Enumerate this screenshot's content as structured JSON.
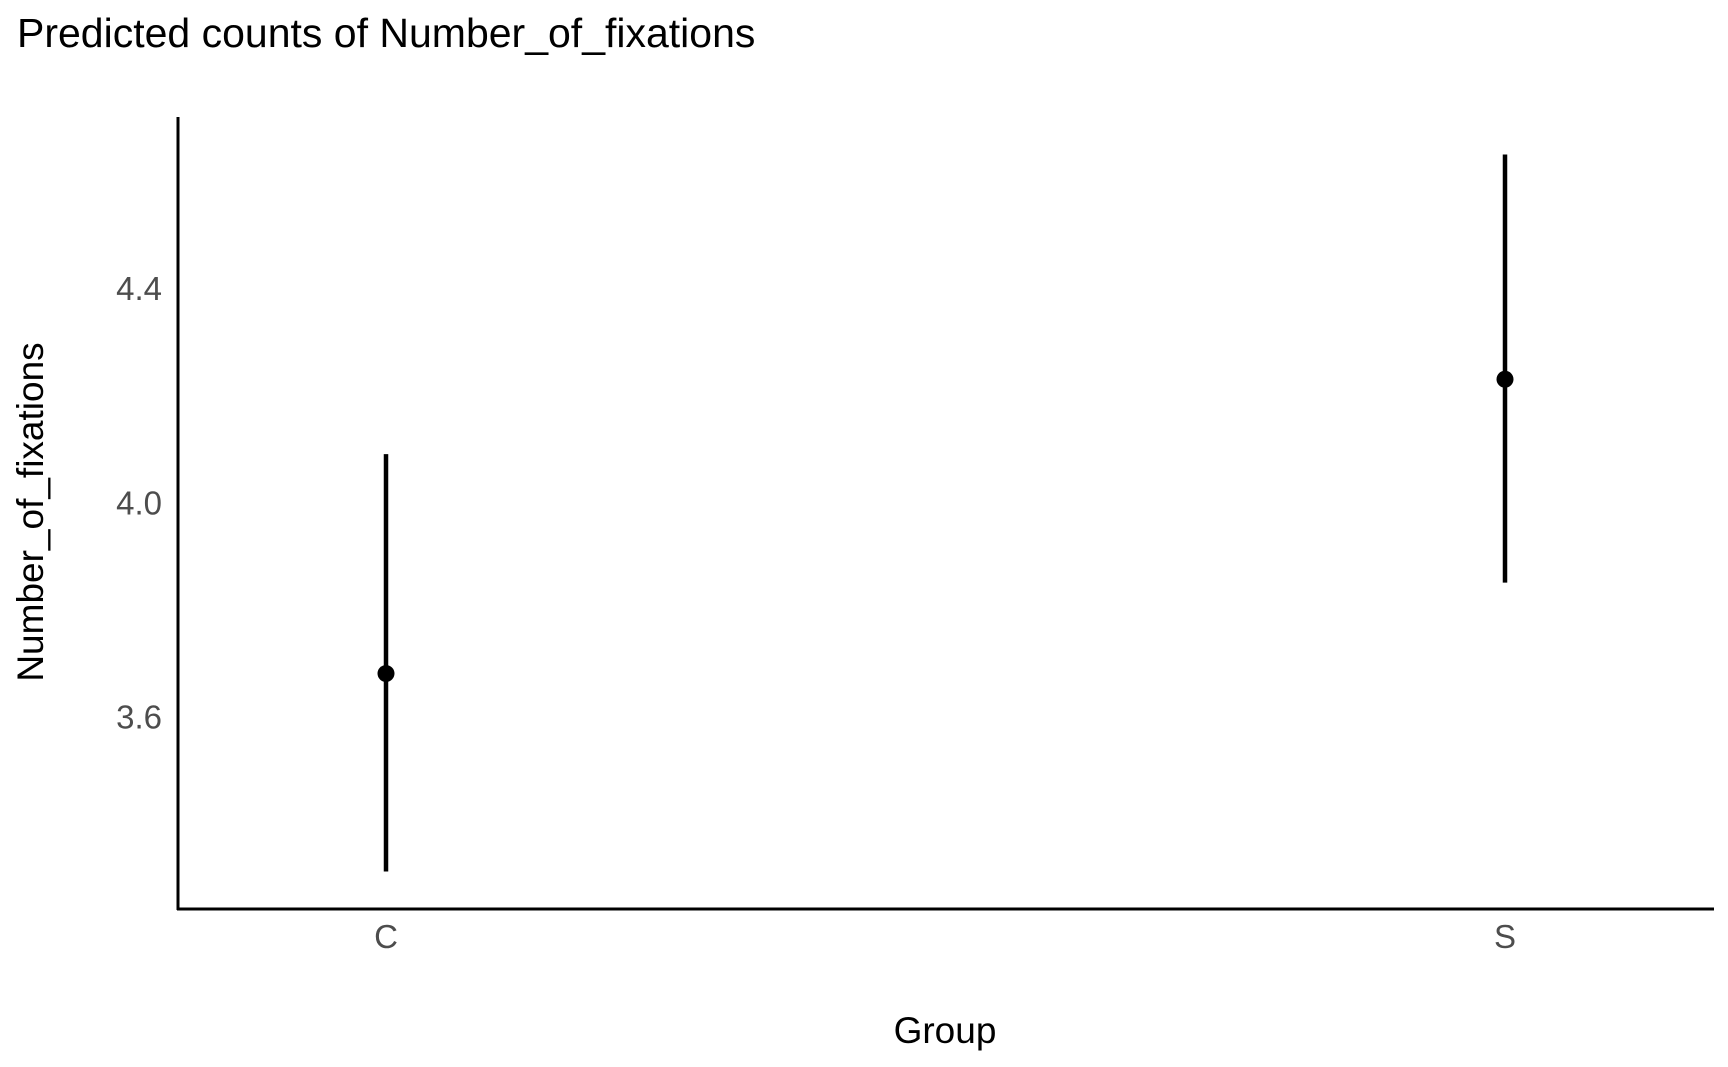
{
  "chart_data": {
    "type": "pointrange",
    "title": "Predicted counts of Number_of_fixations",
    "xlabel": "Group",
    "ylabel": "Number_of_fixations",
    "categories": [
      "C",
      "S"
    ],
    "series": [
      {
        "estimates": [
          3.68,
          4.23
        ],
        "ci_low": [
          3.31,
          3.85
        ],
        "ci_high": [
          4.09,
          4.65
        ]
      }
    ],
    "yticks": [
      3.6,
      4.0,
      4.4
    ],
    "ylim": [
      3.24,
      4.72
    ],
    "grid": false,
    "legend": "none",
    "colors": {
      "mark": "#000000",
      "axis": "#000000",
      "tick_label": "#4d4d4d",
      "background": "#ffffff"
    }
  }
}
